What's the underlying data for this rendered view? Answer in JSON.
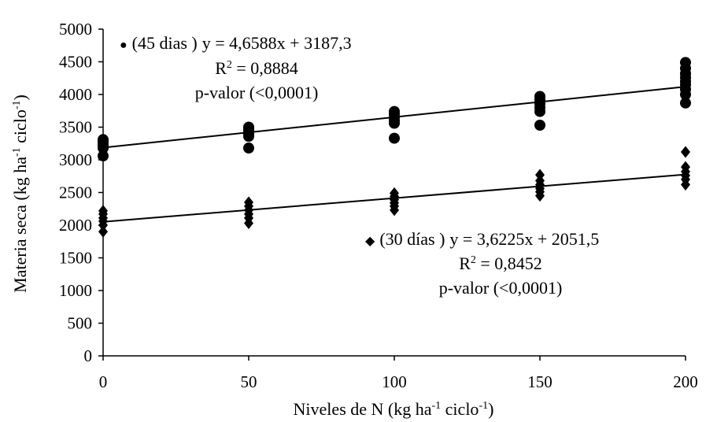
{
  "chart_data": {
    "type": "scatter",
    "xlabel": {
      "main": "Niveles de N (kg ha",
      "sup1": "-1",
      "mid": " ciclo",
      "sup2": "-1",
      "end": ")"
    },
    "ylabel": {
      "main": "Materia seca (kg ha",
      "sup1": "-1",
      "mid": " ciclo",
      "sup2": "-1",
      "end": ")"
    },
    "xlim": [
      0,
      200
    ],
    "ylim": [
      0,
      5000
    ],
    "xticks": [
      0,
      50,
      100,
      150,
      200
    ],
    "yticks": [
      0,
      500,
      1000,
      1500,
      2000,
      2500,
      3000,
      3500,
      4000,
      4500,
      5000
    ],
    "grid": false,
    "series": [
      {
        "name": "(45 dias )",
        "marker": "circle",
        "color": "#000000",
        "trend": {
          "slope": 4.6588,
          "intercept": 3187.3
        },
        "annotation": {
          "marker_glyph": "●",
          "label": "(45 dias )",
          "equation": "y = 4,6588x + 3187,3",
          "r2_prefix": "R",
          "r2_sup": "2",
          "r2_value": " = 0,8884",
          "pvalue": "p-valor (<0,0001)"
        },
        "points": [
          [
            0,
            3060
          ],
          [
            0,
            3180
          ],
          [
            0,
            3220
          ],
          [
            0,
            3260
          ],
          [
            0,
            3290
          ],
          [
            0,
            3310
          ],
          [
            50,
            3180
          ],
          [
            50,
            3360
          ],
          [
            50,
            3400
          ],
          [
            50,
            3440
          ],
          [
            50,
            3470
          ],
          [
            50,
            3500
          ],
          [
            100,
            3330
          ],
          [
            100,
            3560
          ],
          [
            100,
            3600
          ],
          [
            100,
            3650
          ],
          [
            100,
            3700
          ],
          [
            100,
            3740
          ],
          [
            150,
            3530
          ],
          [
            150,
            3740
          ],
          [
            150,
            3800
          ],
          [
            150,
            3860
          ],
          [
            150,
            3920
          ],
          [
            150,
            3970
          ],
          [
            200,
            3870
          ],
          [
            200,
            4000
          ],
          [
            200,
            4080
          ],
          [
            200,
            4150
          ],
          [
            200,
            4200
          ],
          [
            200,
            4260
          ],
          [
            200,
            4320
          ],
          [
            200,
            4400
          ],
          [
            200,
            4490
          ]
        ]
      },
      {
        "name": "(30 días )",
        "marker": "diamond",
        "color": "#000000",
        "trend": {
          "slope": 3.6225,
          "intercept": 2051.5
        },
        "annotation": {
          "marker_glyph": "◆",
          "label": "(30 días )",
          "equation": "y = 3,6225x + 2051,5",
          "r2_prefix": "R",
          "r2_sup": "2",
          "r2_value": " = 0,8452",
          "pvalue": "p-valor (<0,0001)"
        },
        "points": [
          [
            0,
            1900
          ],
          [
            0,
            2000
          ],
          [
            0,
            2060
          ],
          [
            0,
            2110
          ],
          [
            0,
            2170
          ],
          [
            0,
            2220
          ],
          [
            50,
            2030
          ],
          [
            50,
            2110
          ],
          [
            50,
            2170
          ],
          [
            50,
            2230
          ],
          [
            50,
            2290
          ],
          [
            50,
            2350
          ],
          [
            100,
            2230
          ],
          [
            100,
            2290
          ],
          [
            100,
            2340
          ],
          [
            100,
            2390
          ],
          [
            100,
            2440
          ],
          [
            100,
            2490
          ],
          [
            150,
            2450
          ],
          [
            150,
            2510
          ],
          [
            150,
            2560
          ],
          [
            150,
            2620
          ],
          [
            150,
            2680
          ],
          [
            150,
            2770
          ],
          [
            200,
            2620
          ],
          [
            200,
            2700
          ],
          [
            200,
            2760
          ],
          [
            200,
            2820
          ],
          [
            200,
            2890
          ],
          [
            200,
            3120
          ]
        ]
      }
    ]
  }
}
